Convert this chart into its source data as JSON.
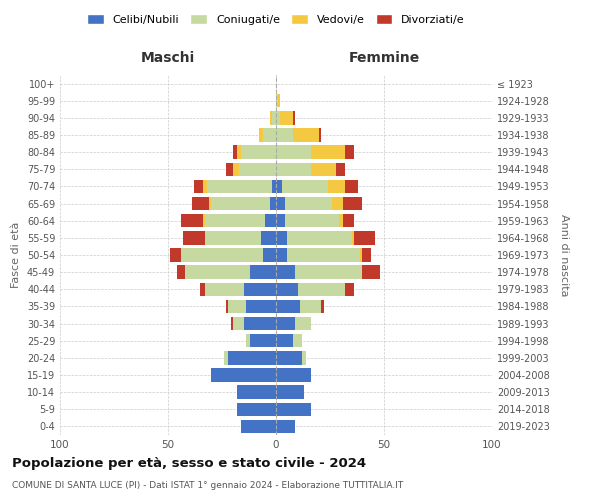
{
  "age_groups": [
    "0-4",
    "5-9",
    "10-14",
    "15-19",
    "20-24",
    "25-29",
    "30-34",
    "35-39",
    "40-44",
    "45-49",
    "50-54",
    "55-59",
    "60-64",
    "65-69",
    "70-74",
    "75-79",
    "80-84",
    "85-89",
    "90-94",
    "95-99",
    "100+"
  ],
  "birth_years": [
    "2019-2023",
    "2014-2018",
    "2009-2013",
    "2004-2008",
    "1999-2003",
    "1994-1998",
    "1989-1993",
    "1984-1988",
    "1979-1983",
    "1974-1978",
    "1969-1973",
    "1964-1968",
    "1959-1963",
    "1954-1958",
    "1949-1953",
    "1944-1948",
    "1939-1943",
    "1934-1938",
    "1929-1933",
    "1924-1928",
    "≤ 1923"
  ],
  "male": {
    "celibi": [
      16,
      18,
      18,
      30,
      22,
      12,
      15,
      14,
      15,
      12,
      6,
      7,
      5,
      3,
      2,
      0,
      0,
      0,
      0,
      0,
      0
    ],
    "coniugati": [
      0,
      0,
      0,
      0,
      2,
      2,
      5,
      8,
      18,
      30,
      38,
      26,
      28,
      27,
      30,
      17,
      16,
      6,
      2,
      0,
      0
    ],
    "vedovi": [
      0,
      0,
      0,
      0,
      0,
      0,
      0,
      0,
      0,
      0,
      0,
      0,
      1,
      1,
      2,
      3,
      2,
      2,
      1,
      0,
      0
    ],
    "divorziati": [
      0,
      0,
      0,
      0,
      0,
      0,
      1,
      1,
      2,
      4,
      5,
      10,
      10,
      8,
      4,
      3,
      2,
      0,
      0,
      0,
      0
    ]
  },
  "female": {
    "nubili": [
      9,
      16,
      13,
      16,
      12,
      8,
      9,
      11,
      10,
      9,
      5,
      5,
      4,
      4,
      3,
      0,
      0,
      0,
      0,
      0,
      0
    ],
    "coniugate": [
      0,
      0,
      0,
      0,
      2,
      4,
      7,
      10,
      22,
      31,
      34,
      30,
      25,
      22,
      21,
      16,
      16,
      8,
      2,
      1,
      0
    ],
    "vedove": [
      0,
      0,
      0,
      0,
      0,
      0,
      0,
      0,
      0,
      0,
      1,
      1,
      2,
      5,
      8,
      12,
      16,
      12,
      6,
      1,
      0
    ],
    "divorziate": [
      0,
      0,
      0,
      0,
      0,
      0,
      0,
      1,
      4,
      8,
      4,
      10,
      5,
      9,
      6,
      4,
      4,
      1,
      1,
      0,
      0
    ]
  },
  "colors": {
    "celibi": "#4472C4",
    "coniugati": "#c5d9a0",
    "vedovi": "#f5c842",
    "divorziati": "#c0392b"
  },
  "xlim": 100,
  "title": "Popolazione per età, sesso e stato civile - 2024",
  "subtitle": "COMUNE DI SANTA LUCE (PI) - Dati ISTAT 1° gennaio 2024 - Elaborazione TUTTITALIA.IT",
  "ylabel_left": "Fasce di età",
  "ylabel_right": "Anni di nascita",
  "xlabel_left": "Maschi",
  "xlabel_right": "Femmine",
  "bg_color": "#ffffff",
  "grid_color": "#cccccc",
  "legend_labels": [
    "Celibi/Nubili",
    "Coniugati/e",
    "Vedovi/e",
    "Divorziati/e"
  ]
}
